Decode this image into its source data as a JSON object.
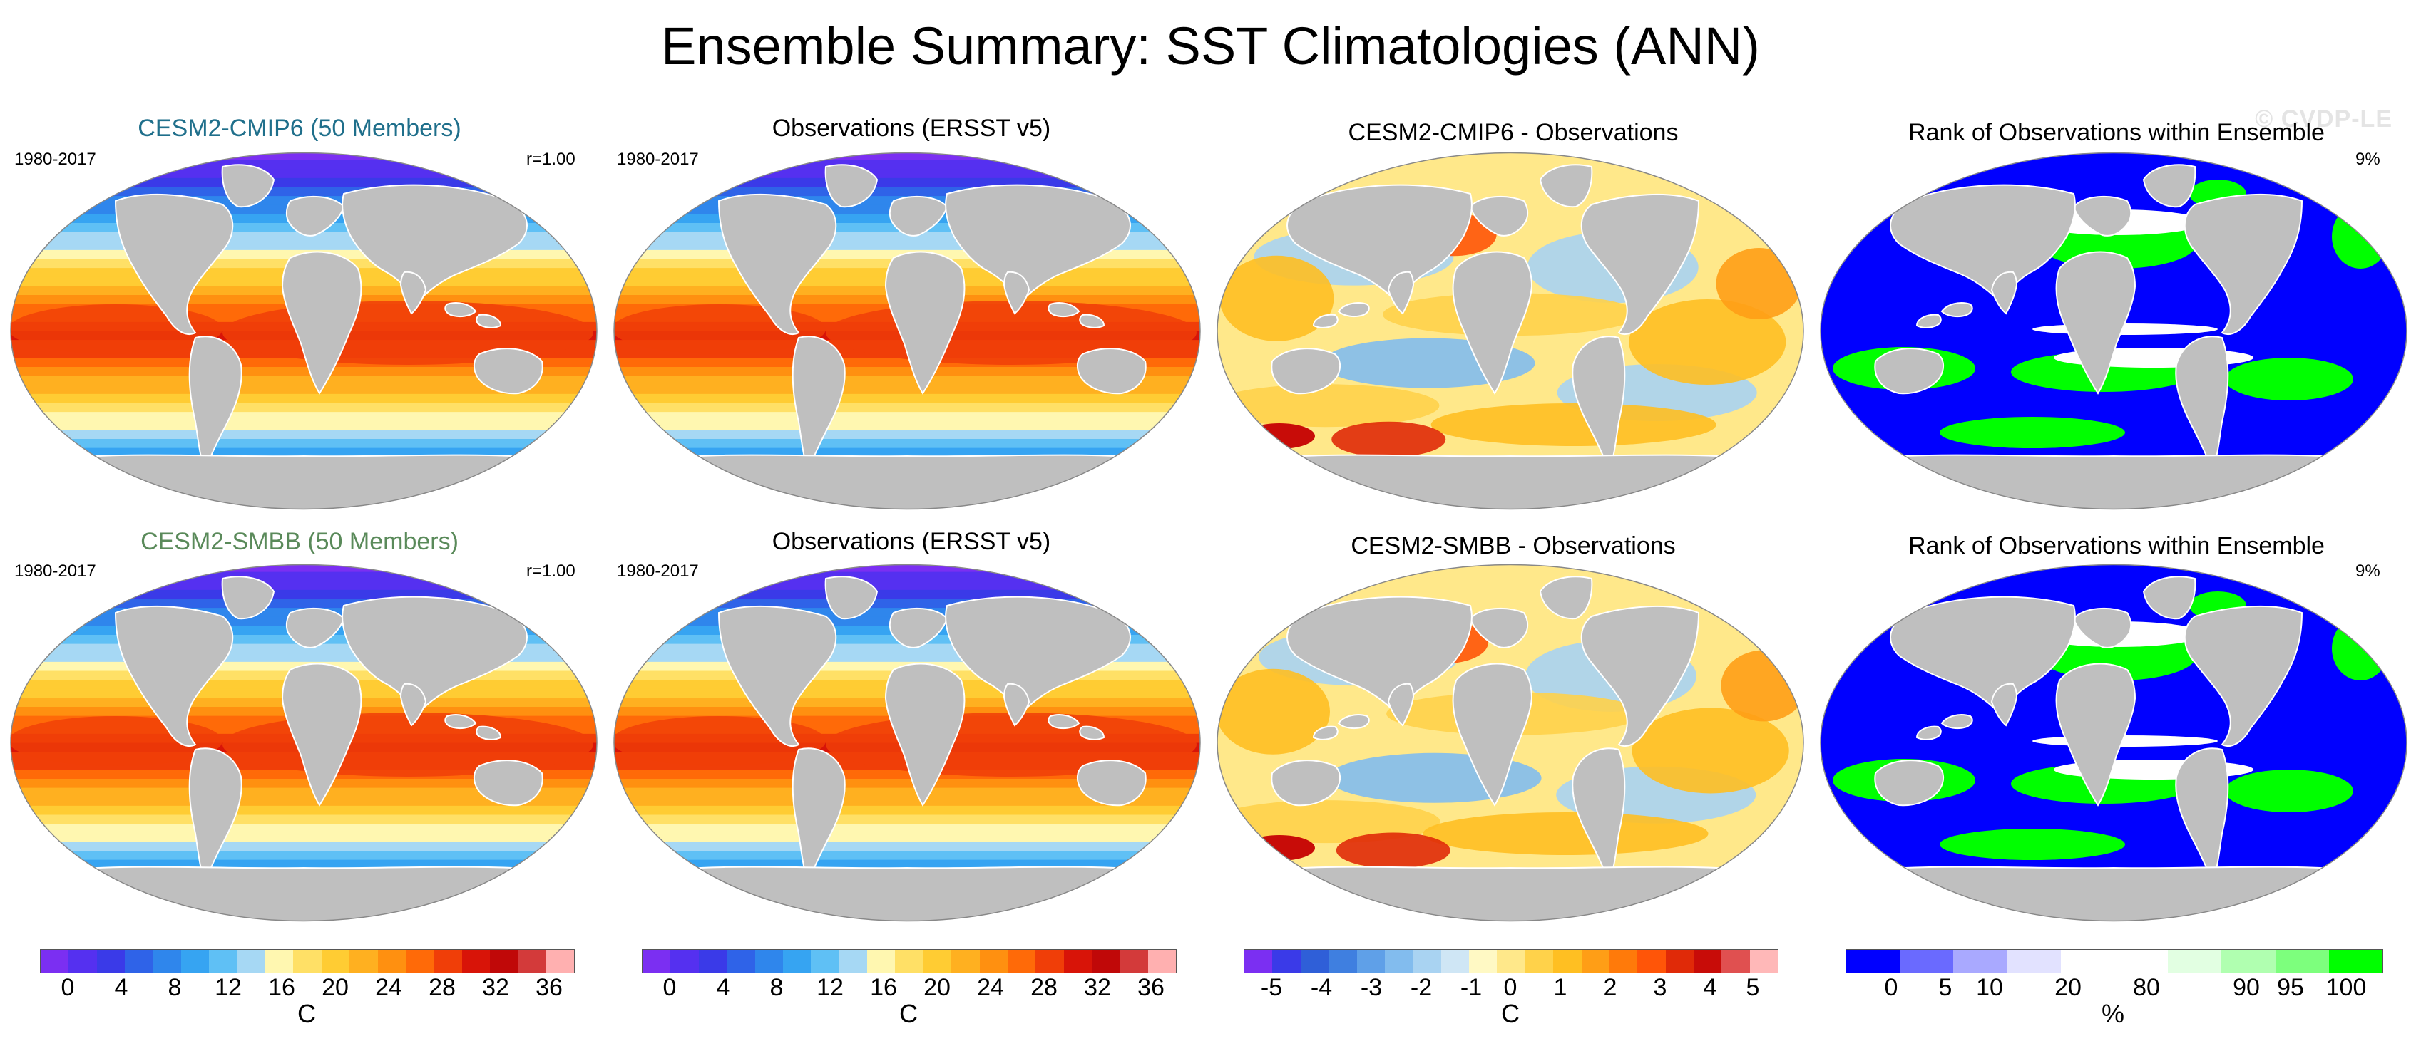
{
  "title": "Ensemble Summary: SST Climatologies (ANN)",
  "watermark": "© CVDP-LE",
  "colors": {
    "cmip6_title": "#1f6f8b",
    "smbb_title": "#5a8a5a",
    "land": "#bfbfbf",
    "coast": "#ffffff"
  },
  "scales": {
    "sst": {
      "colors": [
        "#7b2ff2",
        "#5530f0",
        "#3a3ae8",
        "#2f63e8",
        "#2f86ec",
        "#36a4f2",
        "#5fc0f5",
        "#a6d8f4",
        "#fff7b0",
        "#ffe066",
        "#ffcc33",
        "#ffb020",
        "#ff9010",
        "#ff6a08",
        "#f03e08",
        "#d81408",
        "#c00808",
        "#d33a3a",
        "#ffb0b0"
      ],
      "tick_labels": [
        "0",
        "4",
        "8",
        "12",
        "16",
        "20",
        "24",
        "28",
        "32",
        "36"
      ],
      "unit": "C"
    },
    "diff": {
      "colors": [
        "#7b2ff2",
        "#3a3ae8",
        "#2f5fd8",
        "#3f7fe0",
        "#5fa0e8",
        "#82bcee",
        "#a9d3f2",
        "#cfe6f5",
        "#fff9c4",
        "#ffe88a",
        "#ffd24a",
        "#ffbf22",
        "#ff9e16",
        "#ff7a0a",
        "#ff5508",
        "#e02a08",
        "#c80c08",
        "#e05050",
        "#ffb8b8"
      ],
      "tick_labels": [
        "-5",
        "-4",
        "-3",
        "-2",
        "-1",
        "0",
        "1",
        "2",
        "3",
        "4",
        "5"
      ],
      "unit": "C"
    },
    "rank": {
      "colors": [
        "#0000ff",
        "#6a6aff",
        "#a9a9ff",
        "#e2e2ff",
        "#ffffff",
        "#ffffff",
        "#e2ffe2",
        "#b0ffb0",
        "#7dff7d",
        "#00ff00"
      ],
      "tick_labels": [
        "0",
        "5",
        "10",
        "20",
        "80",
        "90",
        "95",
        "100"
      ],
      "unit": "%"
    }
  },
  "rows": [
    {
      "panels": [
        {
          "title": "CESM2-CMIP6 (50 Members)",
          "left": "1980-2017",
          "right": "r=1.00",
          "kind": "sst_model"
        },
        {
          "title": "Observations (ERSST v5)",
          "left": "1980-2017",
          "right": "",
          "kind": "sst_obs"
        },
        {
          "title": "CESM2-CMIP6 - Observations",
          "left": "",
          "right": "",
          "kind": "diff"
        },
        {
          "title": "Rank of Observations within Ensemble",
          "left": "",
          "right": "9%",
          "kind": "rank"
        }
      ]
    },
    {
      "panels": [
        {
          "title": "CESM2-SMBB (50 Members)",
          "left": "1980-2017",
          "right": "r=1.00",
          "kind": "sst_model"
        },
        {
          "title": "Observations (ERSST v5)",
          "left": "1980-2017",
          "right": "",
          "kind": "sst_obs"
        },
        {
          "title": "CESM2-SMBB - Observations",
          "left": "",
          "right": "",
          "kind": "diff"
        },
        {
          "title": "Rank of Observations within Ensemble",
          "left": "",
          "right": "9%",
          "kind": "rank"
        }
      ]
    }
  ]
}
